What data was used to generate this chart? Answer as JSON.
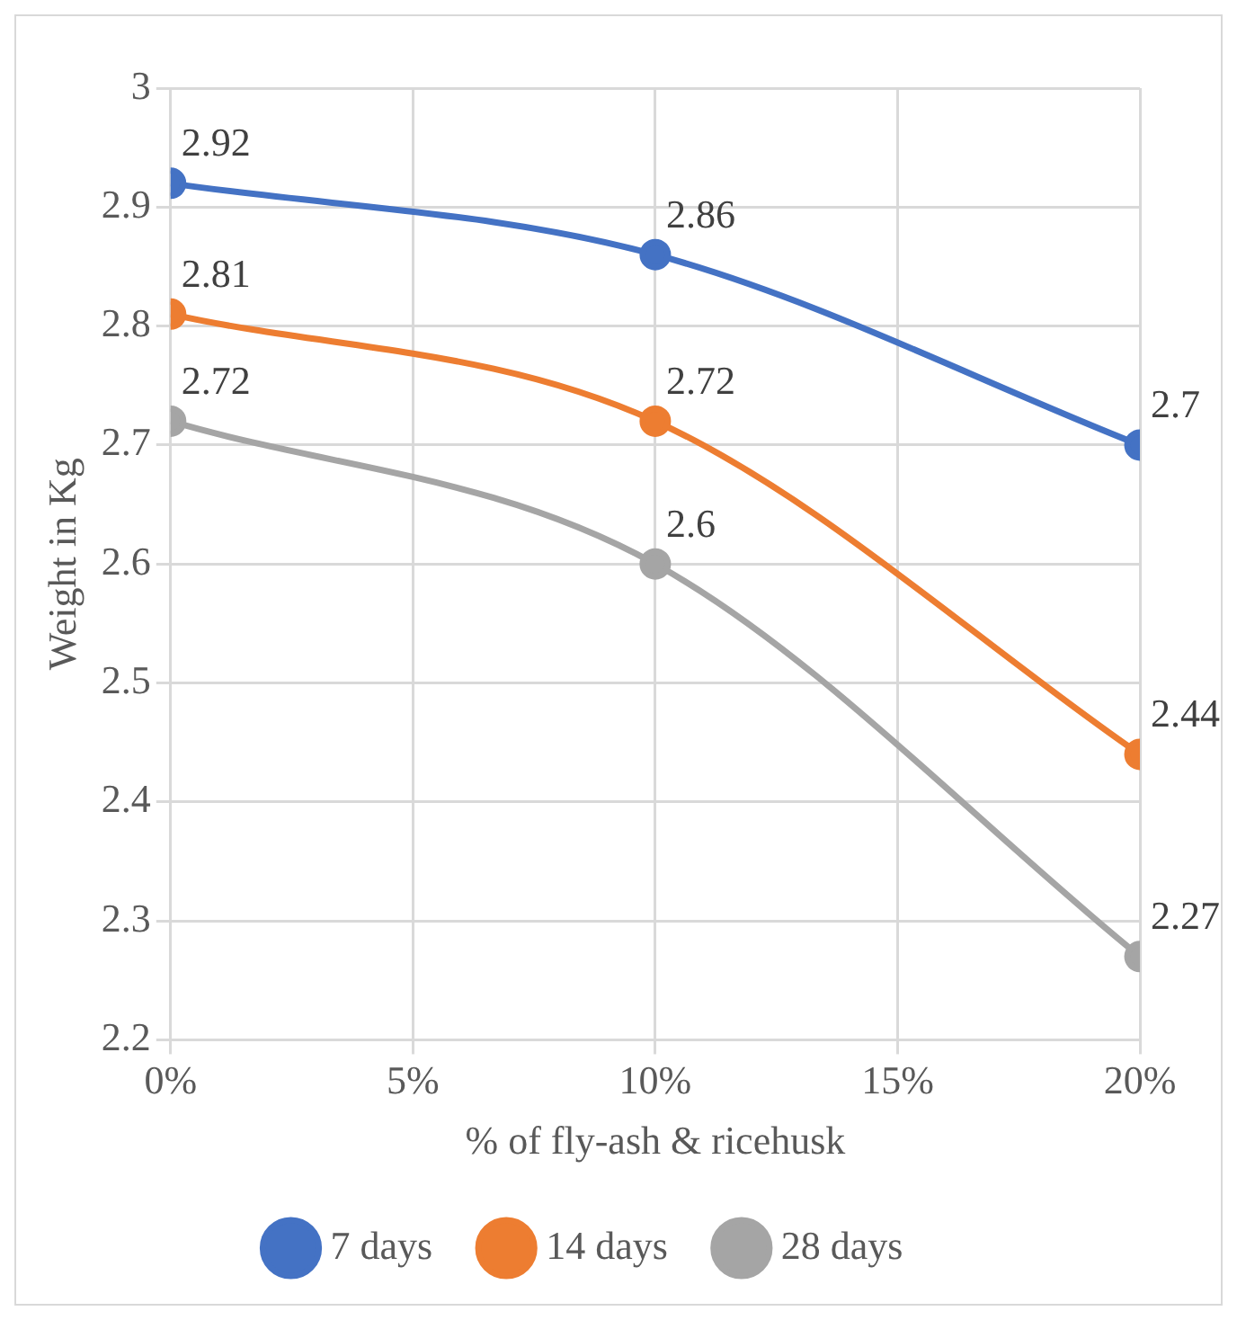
{
  "chart_data": {
    "type": "line",
    "xlabel": "% of fly-ash & ricehusk",
    "ylabel": "Weight in Kg",
    "x": [
      0,
      10,
      20
    ],
    "series": [
      {
        "name": "7 days",
        "color": "#4472c4",
        "values": [
          2.92,
          2.86,
          2.7
        ]
      },
      {
        "name": "14 days",
        "color": "#ed7d31",
        "values": [
          2.81,
          2.72,
          2.44
        ]
      },
      {
        "name": "28 days",
        "color": "#a5a5a5",
        "values": [
          2.72,
          2.6,
          2.27
        ]
      }
    ],
    "xlim": [
      0,
      20
    ],
    "xticks": [
      {
        "value": 0,
        "label": "0%"
      },
      {
        "value": 5,
        "label": "5%"
      },
      {
        "value": 10,
        "label": "10%"
      },
      {
        "value": 15,
        "label": "15%"
      },
      {
        "value": 20,
        "label": "20%"
      }
    ],
    "ylim": [
      2.2,
      3
    ],
    "yticks": [
      2.2,
      2.3,
      2.4,
      2.5,
      2.6,
      2.7,
      2.8,
      2.9,
      3
    ],
    "grid": true,
    "legend": "bottom",
    "marker": "circle",
    "line_style": "solid",
    "data_labels": true
  }
}
